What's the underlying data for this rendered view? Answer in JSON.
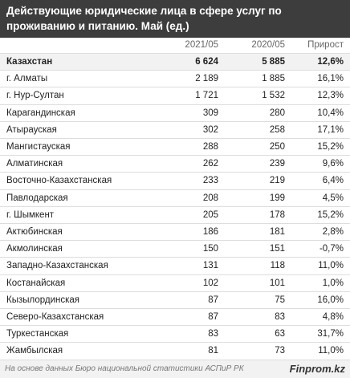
{
  "header": {
    "title": "Действующие юридические лица в сфере услуг по проживанию и питанию. Май (ед.)"
  },
  "table": {
    "columns": [
      "",
      "2021/05",
      "2020/05",
      "Прирост"
    ],
    "rows": [
      [
        "Казахстан",
        "6 624",
        "5 885",
        "12,6%"
      ],
      [
        "г. Алматы",
        "2 189",
        "1 885",
        "16,1%"
      ],
      [
        "г. Нур-Султан",
        "1 721",
        "1 532",
        "12,3%"
      ],
      [
        "Карагандинская",
        "309",
        "280",
        "10,4%"
      ],
      [
        "Атырауская",
        "302",
        "258",
        "17,1%"
      ],
      [
        "Мангистауская",
        "288",
        "250",
        "15,2%"
      ],
      [
        "Алматинская",
        "262",
        "239",
        "9,6%"
      ],
      [
        "Восточно-Казахстанская",
        "233",
        "219",
        "6,4%"
      ],
      [
        "Павлодарская",
        "208",
        "199",
        "4,5%"
      ],
      [
        "г. Шымкент",
        "205",
        "178",
        "15,2%"
      ],
      [
        "Актюбинская",
        "186",
        "181",
        "2,8%"
      ],
      [
        "Акмолинская",
        "150",
        "151",
        "-0,7%"
      ],
      [
        "Западно-Казахстанская",
        "131",
        "118",
        "11,0%"
      ],
      [
        "Костанайская",
        "102",
        "101",
        "1,0%"
      ],
      [
        "Кызылординская",
        "87",
        "75",
        "16,0%"
      ],
      [
        "Северо-Казахстанская",
        "87",
        "83",
        "4,8%"
      ],
      [
        "Туркестанская",
        "83",
        "63",
        "31,7%"
      ],
      [
        "Жамбылская",
        "81",
        "73",
        "11,0%"
      ]
    ]
  },
  "footer": {
    "source": "На основе данных Бюро национальной статистики АСПиР РК",
    "brand": "Finprom.kz"
  }
}
